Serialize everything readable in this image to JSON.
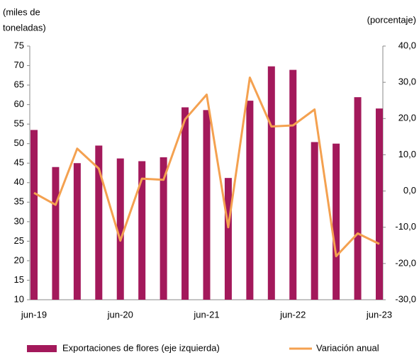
{
  "chart_data": {
    "type": "bar_line",
    "y_label": [
      "(miles de",
      "toneladas)"
    ],
    "y2_label": "(porcentaje)",
    "categories": [
      "jun-19",
      null,
      null,
      null,
      "jun-20",
      null,
      null,
      null,
      "jun-21",
      null,
      null,
      null,
      "jun-22",
      null,
      null,
      null,
      "jun-23"
    ],
    "series": [
      {
        "name": "Exportaciones de flores (eje izquierda)",
        "type": "bar",
        "color": "#a3195b",
        "values": [
          53.5,
          44,
          45,
          49.5,
          46.2,
          45.5,
          46.5,
          59.3,
          58.6,
          41.2,
          61,
          69.8,
          68.9,
          50.4,
          50,
          61.9,
          59
        ]
      },
      {
        "name": "Variación anual",
        "type": "line",
        "axis": "y2",
        "color": "#f4a150",
        "values": [
          -0.5,
          -3.8,
          11.7,
          6.2,
          -13.7,
          3.4,
          3.1,
          19.8,
          26.6,
          -10,
          31.3,
          17.8,
          18.1,
          22.5,
          -18,
          -11.7,
          -14.6
        ]
      }
    ],
    "ylim": [
      10,
      75
    ],
    "yticks": [
      10,
      15,
      20,
      25,
      30,
      35,
      40,
      45,
      50,
      55,
      60,
      65,
      70,
      75
    ],
    "y2lim": [
      -30,
      40
    ],
    "y2ticks": [
      {
        "value": -30,
        "label": "-30,0"
      },
      {
        "value": -20,
        "label": "-20,0"
      },
      {
        "value": -10,
        "label": "-10,0"
      },
      {
        "value": 0,
        "label": "0,0"
      },
      {
        "value": 10,
        "label": "10,0"
      },
      {
        "value": 20,
        "label": "20,0"
      },
      {
        "value": 30,
        "label": "30,0"
      },
      {
        "value": 40,
        "label": "40,0"
      }
    ],
    "legend": "bottom"
  }
}
